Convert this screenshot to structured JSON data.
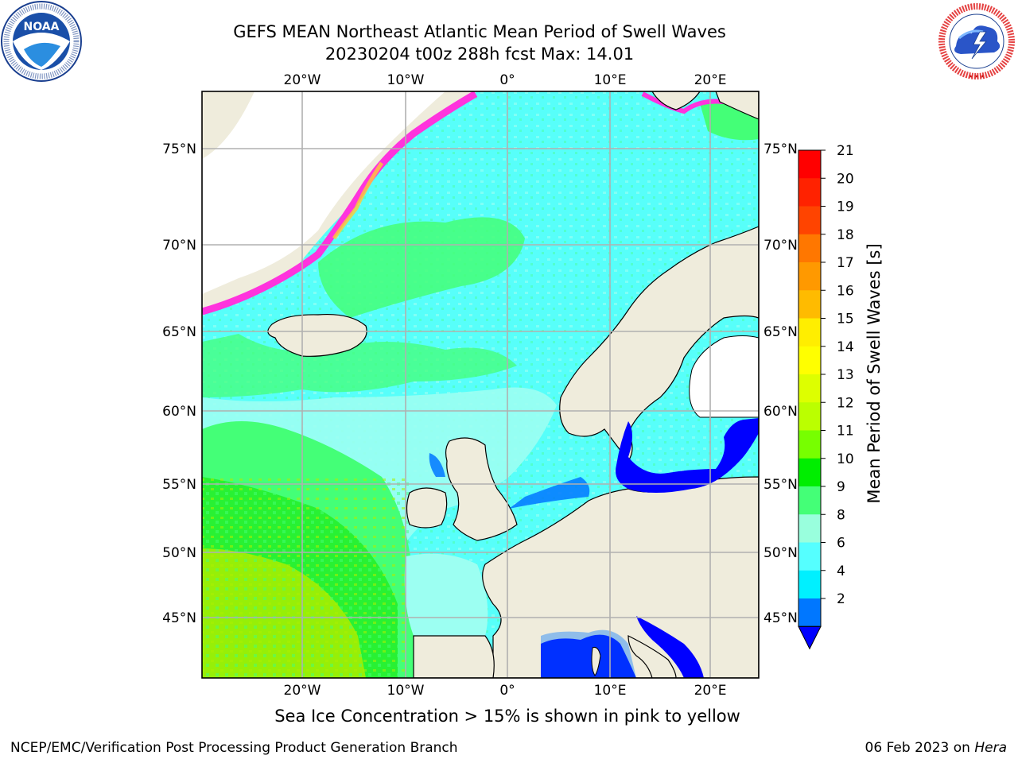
{
  "title_line1": "GEFS MEAN Northeast Atlantic Mean Period of Swell Waves",
  "title_line2": "20230204 t00z 288h fcst   Max: 14.01",
  "subtitle": "Sea Ice Concentration > 15% is shown in pink to yellow",
  "footer_left": "NCEP/EMC/Verification Post Processing Product Generation Branch",
  "footer_right_date": "06 Feb 2023 on",
  "footer_right_host": "Hera",
  "logos": {
    "noaa_text": "NOAA",
    "noaa_ring": "NATIONAL OCEANIC AND ATMOSPHERIC ADMINISTRATION · U.S. DEPARTMENT OF COMMERCE",
    "nws_ring": "NATIONAL WEATHER SERVICE"
  },
  "map": {
    "lon_ticks": [
      "20°W",
      "10°W",
      "0°",
      "10°E",
      "20°E"
    ],
    "lat_ticks": [
      "75°N",
      "70°N",
      "65°N",
      "60°N",
      "55°N",
      "50°N",
      "45°N"
    ],
    "field": "Mean Period of Swell Waves",
    "units": "s",
    "max_value": 14.01,
    "colors": {
      "land": "#efecdc",
      "ocean_main": "#57fffa",
      "ocean_short": "#9cfff2",
      "ice_pink": "#ff33dd",
      "ice_yellow": "#ffcc33"
    }
  },
  "colorbar": {
    "label": "Mean Period of Swell Waves [s]",
    "ticks": [
      "21",
      "20",
      "19",
      "18",
      "17",
      "16",
      "15",
      "14",
      "13",
      "12",
      "11",
      "10",
      "9",
      "8",
      "6",
      "4",
      "2"
    ],
    "bins": [
      {
        "color": "#ff0000"
      },
      {
        "color": "#ff2200"
      },
      {
        "color": "#ff4400"
      },
      {
        "color": "#ff7700"
      },
      {
        "color": "#ff9900"
      },
      {
        "color": "#ffbb00"
      },
      {
        "color": "#ffee00"
      },
      {
        "color": "#ffff00"
      },
      {
        "color": "#ddff00"
      },
      {
        "color": "#bbff00"
      },
      {
        "color": "#77ff00"
      },
      {
        "color": "#00ee00"
      },
      {
        "color": "#44ff77"
      },
      {
        "color": "#99ffdd"
      },
      {
        "color": "#55ffff"
      },
      {
        "color": "#00f0ff"
      },
      {
        "color": "#0077ff"
      }
    ],
    "under_color": "#0000ff"
  }
}
